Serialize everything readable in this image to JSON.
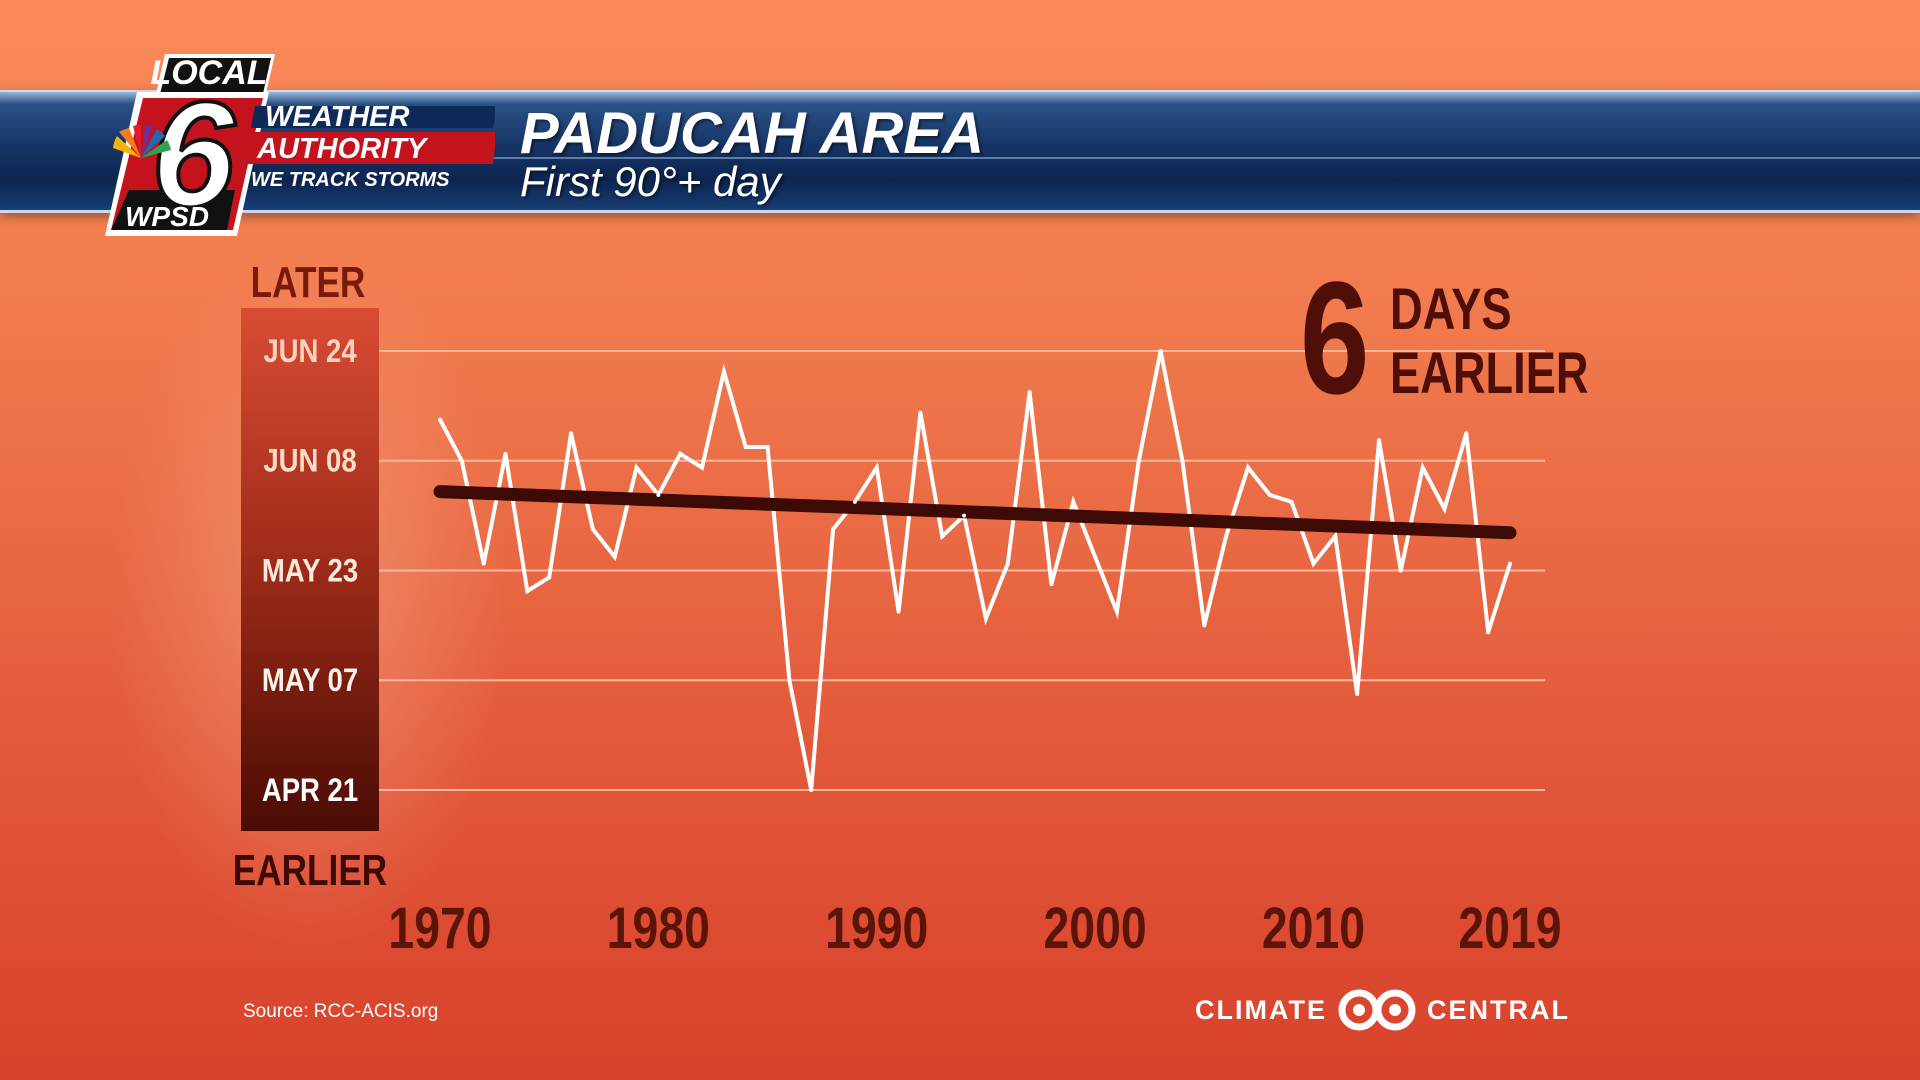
{
  "header": {
    "title": "PADUCAH AREA",
    "subtitle": "First 90°+ day"
  },
  "logo": {
    "top": "LOCAL",
    "number": "6",
    "line1": "WEATHER",
    "line2": "AUTHORITY",
    "line3": "WE TRACK STORMS",
    "station": "WPSD"
  },
  "callout": {
    "number": "6",
    "line1": "DAYS",
    "line2": "EARLIER"
  },
  "source": "Source: RCC-ACIS.org",
  "credit": {
    "left": "CLIMATE",
    "right": "CENTRAL"
  },
  "colors": {
    "line": "#ffffff",
    "trend": "#3d0a05",
    "axis_text_dark": "#5a1408",
    "banner": "#163566"
  },
  "chart_data": {
    "type": "line",
    "y_top_label": "LATER",
    "y_bottom_label": "EARLIER",
    "y_ticks": [
      {
        "label": "JUN 24",
        "value": 175
      },
      {
        "label": "JUN 08",
        "value": 159
      },
      {
        "label": "MAY 23",
        "value": 143
      },
      {
        "label": "MAY 07",
        "value": 127
      },
      {
        "label": "APR 21",
        "value": 111
      }
    ],
    "x_ticks": [
      1970,
      1980,
      1990,
      2000,
      2010,
      2019
    ],
    "ylim": [
      111,
      175
    ],
    "xlim": [
      1970,
      2019
    ],
    "grid": true,
    "series": [
      {
        "x": [
          1970,
          1971,
          1972,
          1973,
          1974,
          1975,
          1976,
          1977,
          1978,
          1979,
          1980,
          1981,
          1982,
          1983,
          1984,
          1985,
          1986,
          1987,
          1988,
          1989,
          1990,
          1991,
          1992,
          1993,
          1994,
          1995,
          1996,
          1997,
          1998,
          1999,
          2000,
          2001,
          2002,
          2003,
          2004,
          2005,
          2006,
          2007,
          2008,
          2009,
          2010,
          2011,
          2012,
          2013,
          2014,
          2015,
          2016,
          2017,
          2018,
          2019
        ],
        "values": [
          165,
          159,
          144,
          160,
          140,
          142,
          163,
          149,
          145,
          158,
          154,
          160,
          158,
          172,
          161,
          161,
          127,
          111,
          149,
          153,
          158,
          137,
          166,
          148,
          151,
          136,
          144,
          169,
          141,
          153,
          145,
          137,
          159,
          175,
          159,
          135,
          148,
          158,
          154,
          153,
          144,
          148,
          125,
          162,
          143,
          158,
          152,
          163,
          134,
          144
        ]
      }
    ],
    "trend": {
      "x": [
        1970,
        2019
      ],
      "values": [
        154.5,
        148.5
      ]
    }
  }
}
